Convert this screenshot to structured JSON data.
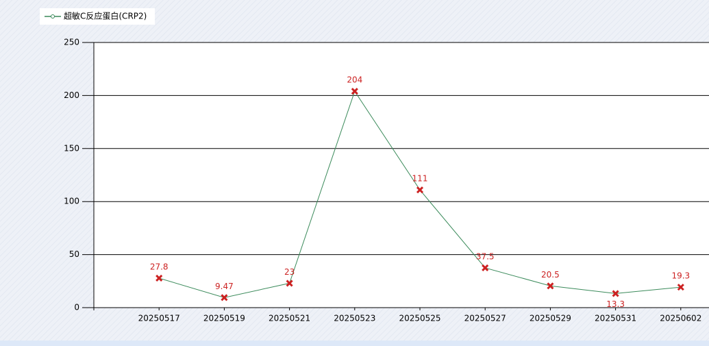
{
  "chart_data": {
    "type": "line",
    "categories": [
      "20250517",
      "20250519",
      "20250521",
      "20250523",
      "20250525",
      "20250527",
      "20250529",
      "20250531",
      "20250602"
    ],
    "series": [
      {
        "name": "超敏C反应蛋白(CRP2)",
        "color": "#3a8a5a",
        "marker_color": "#cc2222",
        "values": [
          27.8,
          9.47,
          23,
          204,
          111,
          37.5,
          20.5,
          13.3,
          19.3
        ]
      }
    ],
    "ylim": [
      0,
      250
    ],
    "yticks": [
      0,
      50,
      100,
      150,
      200,
      250
    ],
    "grid": true,
    "legend": "top-left",
    "data_labels": true
  }
}
